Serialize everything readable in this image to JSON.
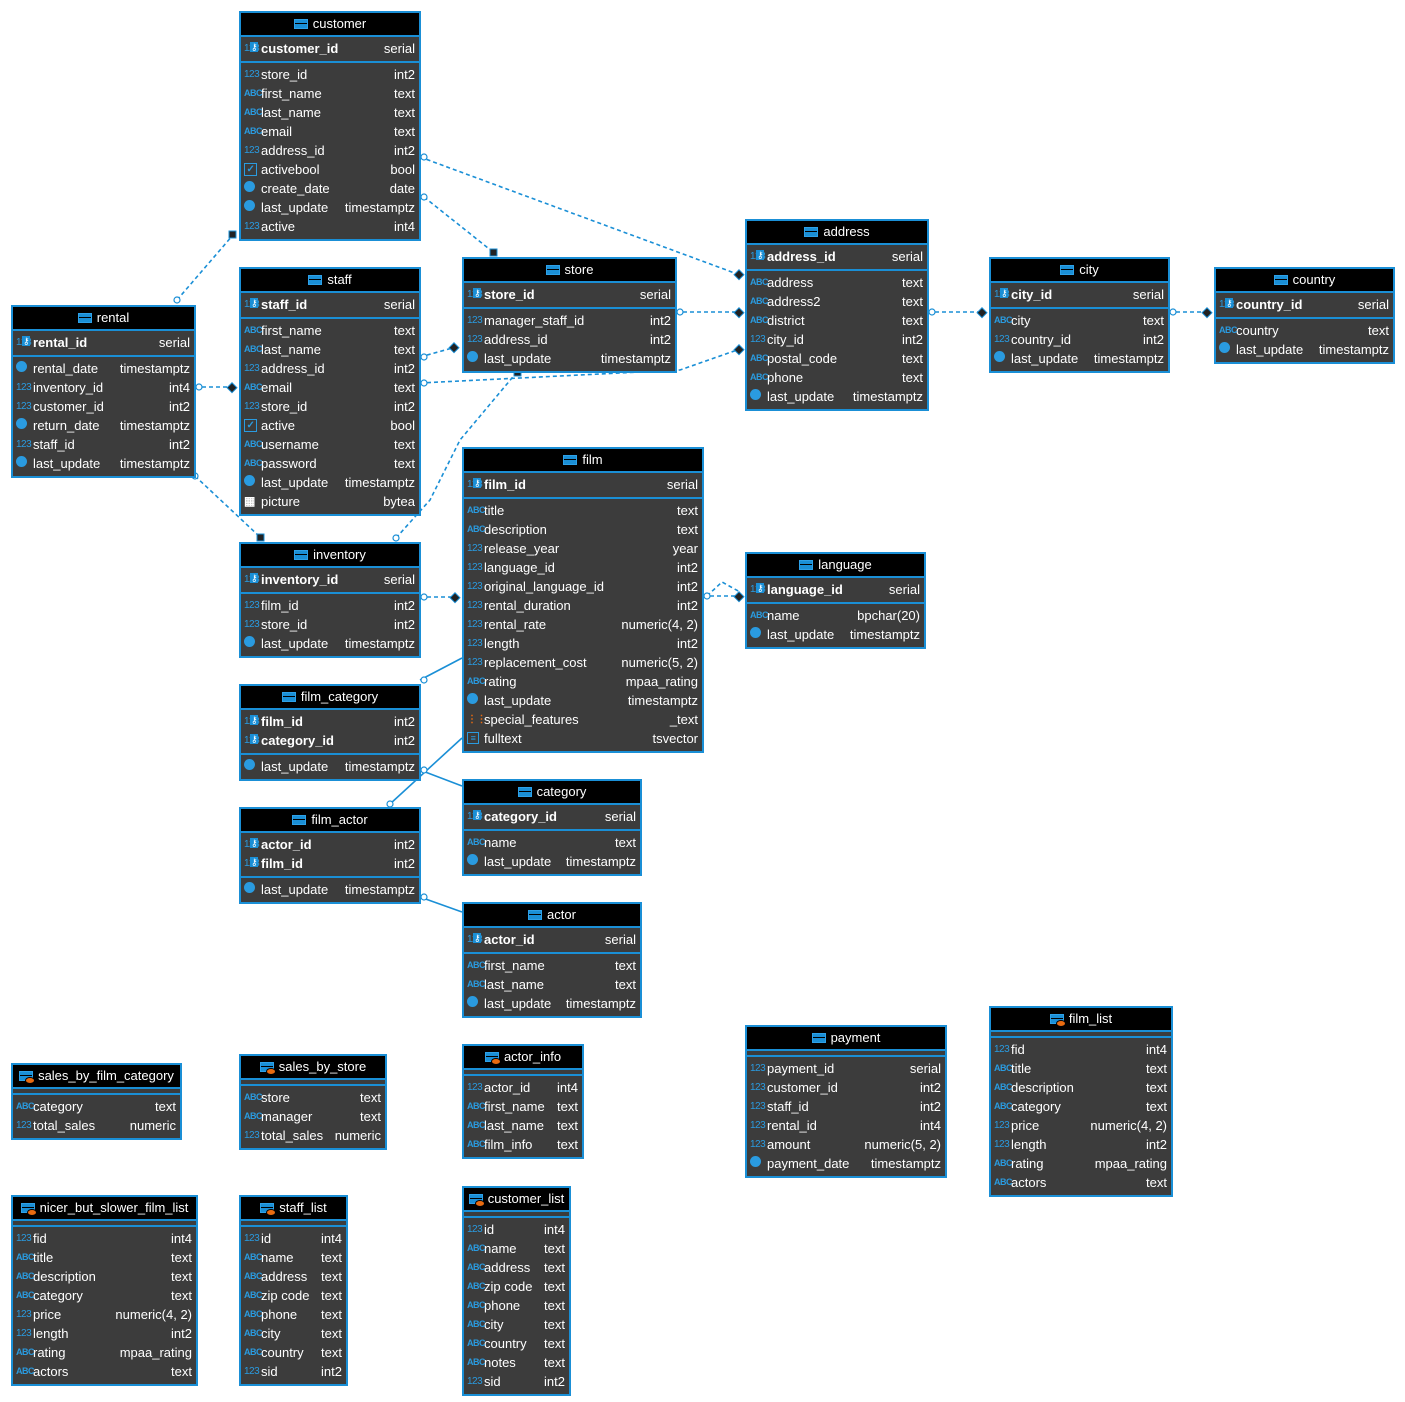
{
  "colors": {
    "border": "#1a8fd6",
    "body": "#3c3c3c",
    "header": "#000000",
    "relation": "#1a8fd6"
  },
  "tables": [
    {
      "name": "customer",
      "kind": "table",
      "pk": [
        [
          "customer_id",
          "serial",
          "num"
        ]
      ],
      "cols": [
        [
          "store_id",
          "int2",
          "num"
        ],
        [
          "first_name",
          "text",
          "abc"
        ],
        [
          "last_name",
          "text",
          "abc"
        ],
        [
          "email",
          "text",
          "abc"
        ],
        [
          "address_id",
          "int2",
          "num"
        ],
        [
          "activebool",
          "bool",
          "chk"
        ],
        [
          "create_date",
          "date",
          "clk"
        ],
        [
          "last_update",
          "timestamptz",
          "clk"
        ],
        [
          "active",
          "int4",
          "num"
        ]
      ]
    },
    {
      "name": "staff",
      "kind": "table",
      "pk": [
        [
          "staff_id",
          "serial",
          "num"
        ]
      ],
      "cols": [
        [
          "first_name",
          "text",
          "abc"
        ],
        [
          "last_name",
          "text",
          "abc"
        ],
        [
          "address_id",
          "int2",
          "num"
        ],
        [
          "email",
          "text",
          "abc"
        ],
        [
          "store_id",
          "int2",
          "num"
        ],
        [
          "active",
          "bool",
          "chk"
        ],
        [
          "username",
          "text",
          "abc"
        ],
        [
          "password",
          "text",
          "abc"
        ],
        [
          "last_update",
          "timestamptz",
          "clk"
        ],
        [
          "picture",
          "bytea",
          "img"
        ]
      ]
    },
    {
      "name": "rental",
      "kind": "table",
      "pk": [
        [
          "rental_id",
          "serial",
          "num"
        ]
      ],
      "cols": [
        [
          "rental_date",
          "timestamptz",
          "clk"
        ],
        [
          "inventory_id",
          "int4",
          "num"
        ],
        [
          "customer_id",
          "int2",
          "num"
        ],
        [
          "return_date",
          "timestamptz",
          "clk"
        ],
        [
          "staff_id",
          "int2",
          "num"
        ],
        [
          "last_update",
          "timestamptz",
          "clk"
        ]
      ]
    },
    {
      "name": "store",
      "kind": "table",
      "pk": [
        [
          "store_id",
          "serial",
          "num"
        ]
      ],
      "cols": [
        [
          "manager_staff_id",
          "int2",
          "num"
        ],
        [
          "address_id",
          "int2",
          "num"
        ],
        [
          "last_update",
          "timestamptz",
          "clk"
        ]
      ]
    },
    {
      "name": "address",
      "kind": "table",
      "pk": [
        [
          "address_id",
          "serial",
          "num"
        ]
      ],
      "cols": [
        [
          "address",
          "text",
          "abc"
        ],
        [
          "address2",
          "text",
          "abc"
        ],
        [
          "district",
          "text",
          "abc"
        ],
        [
          "city_id",
          "int2",
          "num"
        ],
        [
          "postal_code",
          "text",
          "abc"
        ],
        [
          "phone",
          "text",
          "abc"
        ],
        [
          "last_update",
          "timestamptz",
          "clk"
        ]
      ]
    },
    {
      "name": "city",
      "kind": "table",
      "pk": [
        [
          "city_id",
          "serial",
          "num"
        ]
      ],
      "cols": [
        [
          "city",
          "text",
          "abc"
        ],
        [
          "country_id",
          "int2",
          "num"
        ],
        [
          "last_update",
          "timestamptz",
          "clk"
        ]
      ]
    },
    {
      "name": "country",
      "kind": "table",
      "pk": [
        [
          "country_id",
          "serial",
          "num"
        ]
      ],
      "cols": [
        [
          "country",
          "text",
          "abc"
        ],
        [
          "last_update",
          "timestamptz",
          "clk"
        ]
      ]
    },
    {
      "name": "film",
      "kind": "table",
      "pk": [
        [
          "film_id",
          "serial",
          "num"
        ]
      ],
      "cols": [
        [
          "title",
          "text",
          "abc"
        ],
        [
          "description",
          "text",
          "abc"
        ],
        [
          "release_year",
          "year",
          "num"
        ],
        [
          "language_id",
          "int2",
          "num"
        ],
        [
          "original_language_id",
          "int2",
          "num"
        ],
        [
          "rental_duration",
          "int2",
          "num"
        ],
        [
          "rental_rate",
          "numeric(4, 2)",
          "num"
        ],
        [
          "length",
          "int2",
          "num"
        ],
        [
          "replacement_cost",
          "numeric(5, 2)",
          "num"
        ],
        [
          "rating",
          "mpaa_rating",
          "abc"
        ],
        [
          "last_update",
          "timestamptz",
          "clk"
        ],
        [
          "special_features",
          "_text",
          "arr"
        ],
        [
          "fulltext",
          "tsvector",
          "vec"
        ]
      ]
    },
    {
      "name": "language",
      "kind": "table",
      "pk": [
        [
          "language_id",
          "serial",
          "num"
        ]
      ],
      "cols": [
        [
          "name",
          "bpchar(20)",
          "abc"
        ],
        [
          "last_update",
          "timestamptz",
          "clk"
        ]
      ]
    },
    {
      "name": "inventory",
      "kind": "table",
      "pk": [
        [
          "inventory_id",
          "serial",
          "num"
        ]
      ],
      "cols": [
        [
          "film_id",
          "int2",
          "num"
        ],
        [
          "store_id",
          "int2",
          "num"
        ],
        [
          "last_update",
          "timestamptz",
          "clk"
        ]
      ]
    },
    {
      "name": "film_category",
      "kind": "table",
      "pk": [
        [
          "film_id",
          "int2",
          "num"
        ],
        [
          "category_id",
          "int2",
          "num"
        ]
      ],
      "cols": [
        [
          "last_update",
          "timestamptz",
          "clk"
        ]
      ]
    },
    {
      "name": "film_actor",
      "kind": "table",
      "pk": [
        [
          "actor_id",
          "int2",
          "num"
        ],
        [
          "film_id",
          "int2",
          "num"
        ]
      ],
      "cols": [
        [
          "last_update",
          "timestamptz",
          "clk"
        ]
      ]
    },
    {
      "name": "category",
      "kind": "table",
      "pk": [
        [
          "category_id",
          "serial",
          "num"
        ]
      ],
      "cols": [
        [
          "name",
          "text",
          "abc"
        ],
        [
          "last_update",
          "timestamptz",
          "clk"
        ]
      ]
    },
    {
      "name": "actor",
      "kind": "table",
      "pk": [
        [
          "actor_id",
          "serial",
          "num"
        ]
      ],
      "cols": [
        [
          "first_name",
          "text",
          "abc"
        ],
        [
          "last_name",
          "text",
          "abc"
        ],
        [
          "last_update",
          "timestamptz",
          "clk"
        ]
      ]
    },
    {
      "name": "sales_by_film_category",
      "kind": "view",
      "pk": [],
      "cols": [
        [
          "category",
          "text",
          "abc"
        ],
        [
          "total_sales",
          "numeric",
          "num"
        ]
      ]
    },
    {
      "name": "sales_by_store",
      "kind": "view",
      "pk": [],
      "cols": [
        [
          "store",
          "text",
          "abc"
        ],
        [
          "manager",
          "text",
          "abc"
        ],
        [
          "total_sales",
          "numeric",
          "num"
        ]
      ]
    },
    {
      "name": "actor_info",
      "kind": "view",
      "pk": [],
      "cols": [
        [
          "actor_id",
          "int4",
          "num"
        ],
        [
          "first_name",
          "text",
          "abc"
        ],
        [
          "last_name",
          "text",
          "abc"
        ],
        [
          "film_info",
          "text",
          "abc"
        ]
      ]
    },
    {
      "name": "payment",
      "kind": "table",
      "pk": [],
      "cols": [
        [
          "payment_id",
          "serial",
          "num"
        ],
        [
          "customer_id",
          "int2",
          "num"
        ],
        [
          "staff_id",
          "int2",
          "num"
        ],
        [
          "rental_id",
          "int4",
          "num"
        ],
        [
          "amount",
          "numeric(5, 2)",
          "num"
        ],
        [
          "payment_date",
          "timestamptz",
          "clk"
        ]
      ]
    },
    {
      "name": "film_list",
      "kind": "view",
      "pk": [],
      "cols": [
        [
          "fid",
          "int4",
          "num"
        ],
        [
          "title",
          "text",
          "abc"
        ],
        [
          "description",
          "text",
          "abc"
        ],
        [
          "category",
          "text",
          "abc"
        ],
        [
          "price",
          "numeric(4, 2)",
          "num"
        ],
        [
          "length",
          "int2",
          "num"
        ],
        [
          "rating",
          "mpaa_rating",
          "abc"
        ],
        [
          "actors",
          "text",
          "abc"
        ]
      ]
    },
    {
      "name": "nicer_but_slower_film_list",
      "kind": "view",
      "pk": [],
      "cols": [
        [
          "fid",
          "int4",
          "num"
        ],
        [
          "title",
          "text",
          "abc"
        ],
        [
          "description",
          "text",
          "abc"
        ],
        [
          "category",
          "text",
          "abc"
        ],
        [
          "price",
          "numeric(4, 2)",
          "num"
        ],
        [
          "length",
          "int2",
          "num"
        ],
        [
          "rating",
          "mpaa_rating",
          "abc"
        ],
        [
          "actors",
          "text",
          "abc"
        ]
      ]
    },
    {
      "name": "staff_list",
      "kind": "view",
      "pk": [],
      "cols": [
        [
          "id",
          "int4",
          "num"
        ],
        [
          "name",
          "text",
          "abc"
        ],
        [
          "address",
          "text",
          "abc"
        ],
        [
          "zip code",
          "text",
          "abc"
        ],
        [
          "phone",
          "text",
          "abc"
        ],
        [
          "city",
          "text",
          "abc"
        ],
        [
          "country",
          "text",
          "abc"
        ],
        [
          "sid",
          "int2",
          "num"
        ]
      ]
    },
    {
      "name": "customer_list",
      "kind": "view",
      "pk": [],
      "cols": [
        [
          "id",
          "int4",
          "num"
        ],
        [
          "name",
          "text",
          "abc"
        ],
        [
          "address",
          "text",
          "abc"
        ],
        [
          "zip code",
          "text",
          "abc"
        ],
        [
          "phone",
          "text",
          "abc"
        ],
        [
          "city",
          "text",
          "abc"
        ],
        [
          "country",
          "text",
          "abc"
        ],
        [
          "notes",
          "text",
          "abc"
        ],
        [
          "sid",
          "int2",
          "num"
        ]
      ]
    }
  ]
}
